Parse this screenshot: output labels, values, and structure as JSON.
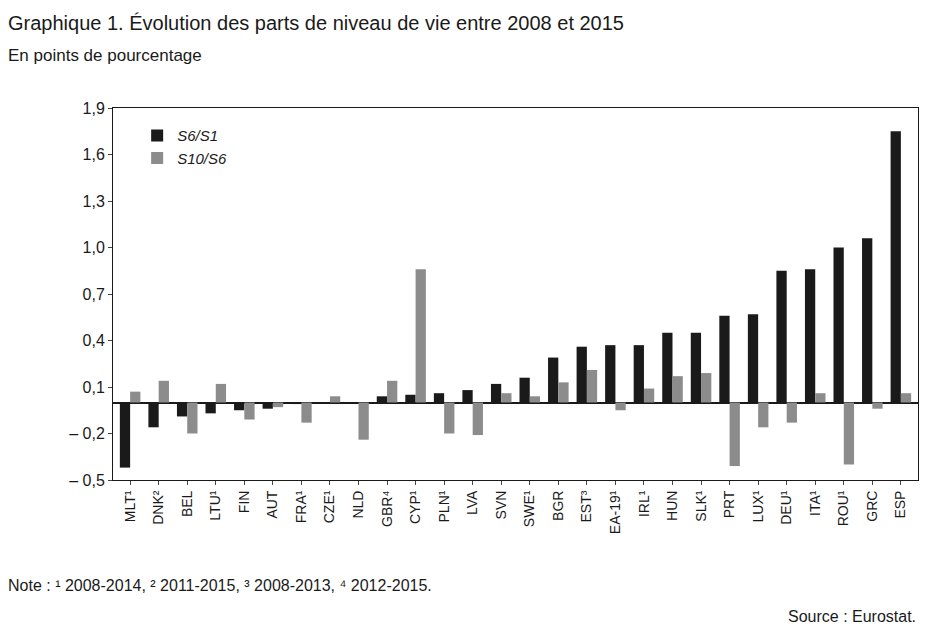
{
  "chart_data": {
    "type": "bar",
    "title": "Graphique 1. Évolution des parts de niveau de vie entre 2008 et 2015",
    "subtitle": "En points de pourcentage",
    "note": "Note : ¹ 2008-2014, ² 2011-2015, ³ 2008-2013, ⁴ 2012-2015.",
    "source": "Source : Eurostat.",
    "categories": [
      "MLT¹",
      "DNK²",
      "BEL",
      "LTU¹",
      "FIN",
      "AUT",
      "FRA¹",
      "CZE¹",
      "NLD",
      "GBR⁴",
      "CYP¹",
      "PLN¹",
      "LVA",
      "SVN",
      "SWE¹",
      "BGR",
      "EST³",
      "EA-19¹",
      "IRL¹",
      "HUN",
      "SLK¹",
      "PRT",
      "LUX¹",
      "DEU¹",
      "ITA¹",
      "ROU¹",
      "GRC",
      "ESP"
    ],
    "series": [
      {
        "name": "S6/S1",
        "color": "#1a1a1a",
        "values": [
          -0.42,
          -0.16,
          -0.09,
          -0.07,
          -0.05,
          -0.04,
          -0.01,
          0,
          0,
          0.04,
          0.05,
          0.06,
          0.08,
          0.12,
          0.16,
          0.29,
          0.36,
          0.37,
          0.37,
          0.45,
          0.45,
          0.56,
          0.57,
          0.85,
          0.86,
          1.0,
          1.06,
          1.75
        ]
      },
      {
        "name": "S10/S6",
        "color": "#8c8c8c",
        "values": [
          0.07,
          0.14,
          -0.2,
          0.12,
          -0.11,
          -0.03,
          -0.13,
          0.04,
          -0.24,
          0.14,
          0.86,
          -0.2,
          -0.21,
          0.06,
          0.04,
          0.13,
          0.21,
          -0.05,
          0.09,
          0.17,
          0.19,
          -0.41,
          -0.16,
          -0.13,
          0.06,
          -0.4,
          -0.04,
          0.06
        ]
      }
    ],
    "ylim": [
      -0.5,
      1.9
    ],
    "yticks": [
      {
        "value": -0.5,
        "label": "– 0,5"
      },
      {
        "value": -0.2,
        "label": "– 0,2"
      },
      {
        "value": 0.1,
        "label": "0,1"
      },
      {
        "value": 0.4,
        "label": "0,4"
      },
      {
        "value": 0.7,
        "label": "0,7"
      },
      {
        "value": 1.0,
        "label": "1,0"
      },
      {
        "value": 1.3,
        "label": "1,3"
      },
      {
        "value": 1.6,
        "label": "1,6"
      },
      {
        "value": 1.9,
        "label": "1,9"
      }
    ],
    "grid": false,
    "legend": "top left"
  }
}
